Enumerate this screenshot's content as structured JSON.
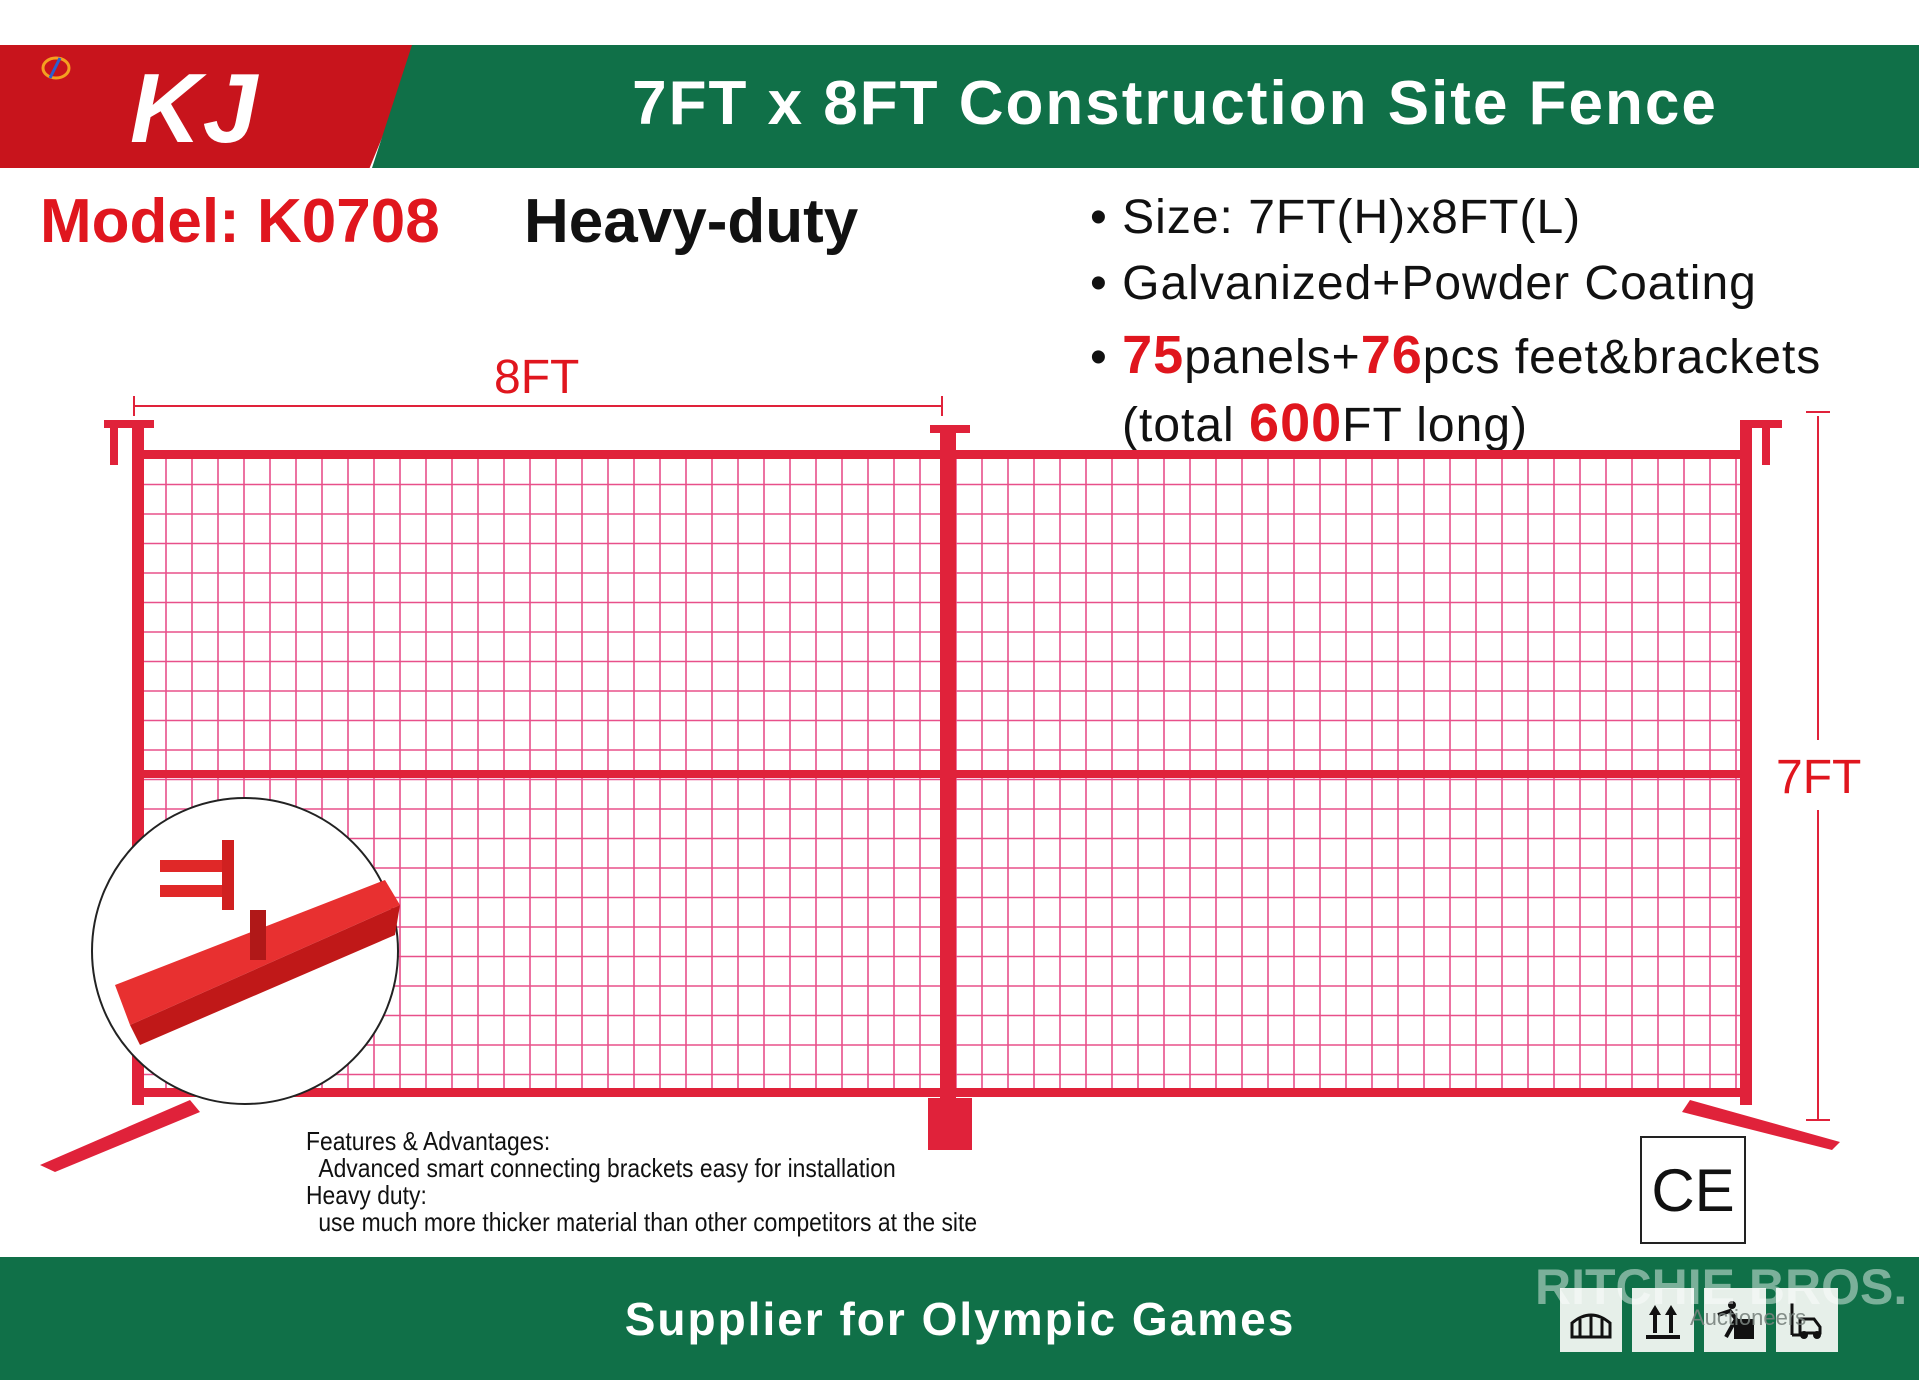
{
  "header": {
    "logo": "KJ",
    "title": "7FT x 8FT Construction Site Fence"
  },
  "model": {
    "label": "Model: K0708",
    "type": "Heavy-duty"
  },
  "specs": {
    "size": "Size: 7FT(H)x8FT(L)",
    "finish": "Galvanized+Powder Coating",
    "panels_num": "75",
    "panels_text": "panels+",
    "feet_num": "76",
    "feet_text": "pcs feet&brackets",
    "total_pre": "(total ",
    "total_num": "600",
    "total_post": "FT long)"
  },
  "dimensions": {
    "width": "8FT",
    "height": "7FT"
  },
  "features": {
    "heading": "Features & Advantages:",
    "line1": "Advanced smart connecting brackets easy for installation",
    "heading2": "Heavy duty:",
    "line2": "use much more thicker material than other competitors at the site"
  },
  "certification": "CE",
  "footer": {
    "text": "Supplier for  Olympic Games",
    "icons": [
      "sling-lift-icon",
      "this-way-up-icon",
      "do-not-step-icon",
      "forklift-icon"
    ]
  },
  "watermark": {
    "text": "RITCHIE BROS.",
    "sub": "Auctioneers"
  },
  "colors": {
    "brand_red": "#c8141c",
    "brand_green": "#107048",
    "fence": "#e0223a",
    "mesh": "#e8508a"
  }
}
